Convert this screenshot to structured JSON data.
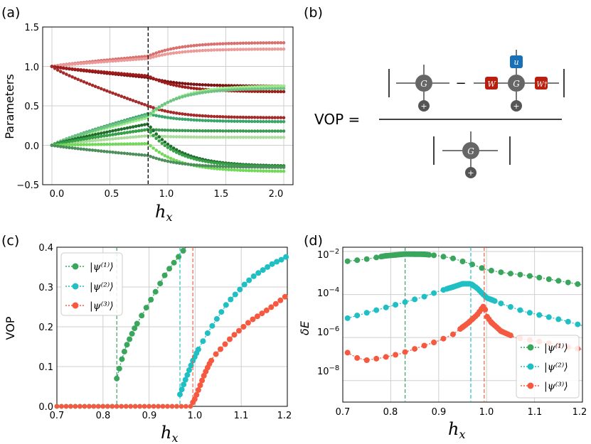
{
  "colors": {
    "psi1": "#3aa55c",
    "psi2": "#1fbfc4",
    "psi3": "#f55a41",
    "grid": "#cfcfcf",
    "node": "#666666",
    "wbox": "#b81f0f",
    "ubox": "#1a70b6"
  },
  "panel_a": {
    "label": "(a)",
    "ylabel": "Parameters",
    "xlabel_main": "h",
    "xlabel_sub": "x",
    "xticks": [
      "0.0",
      "0.5",
      "1.0",
      "1.5",
      "2.0"
    ],
    "yticks": [
      "−0.5",
      "0.0",
      "0.5",
      "1.0",
      "1.5"
    ],
    "critical_hx": 0.83
  },
  "panel_b": {
    "label": "(b)",
    "lhs": "VOP =",
    "minus": "−",
    "g_label": "G",
    "plus_label": "+",
    "w_label": "W",
    "wdag_label": "W†",
    "u_label": "u"
  },
  "panel_c": {
    "label": "(c)",
    "ylabel": "VOP",
    "xlabel_main": "h",
    "xlabel_sub": "x",
    "xticks": [
      "0.7",
      "0.8",
      "0.9",
      "1.0",
      "1.1",
      "1.2"
    ],
    "yticks": [
      "0.0",
      "0.1",
      "0.2",
      "0.3",
      "0.4"
    ],
    "legend": [
      "|ψ⁽¹⁾⟩",
      "|ψ⁽²⁾⟩",
      "|ψ⁽³⁾⟩"
    ]
  },
  "panel_d": {
    "label": "(d)",
    "ylabel": "δE",
    "xlabel_main": "h",
    "xlabel_sub": "x",
    "xticks": [
      "0.7",
      "0.8",
      "0.9",
      "1.0",
      "1.1",
      "1.2"
    ],
    "ytick_base": "10",
    "ytick_exps": [
      "−2",
      "−4",
      "−6",
      "−8"
    ],
    "legend": [
      "|ψ⁽¹⁾⟩",
      "|ψ⁽²⁾⟩",
      "|ψ⁽³⁾⟩"
    ]
  },
  "chart_data": [
    {
      "type": "scatter",
      "panel": "a",
      "title": "",
      "xlabel": "h_x",
      "ylabel": "Parameters",
      "xlim": [
        -0.08,
        2.08
      ],
      "ylim": [
        -0.5,
        1.5
      ],
      "grid": true,
      "vline_dashed": 0.83,
      "series": [
        {
          "name": "r1",
          "color": "#d9706e",
          "start": 1.0,
          "at_c": 1.13,
          "end": 1.3
        },
        {
          "name": "r2",
          "color": "#eb9a9a",
          "start": 1.0,
          "at_c": 1.1,
          "end": 1.22
        },
        {
          "name": "r3",
          "color": "#7a1414",
          "start": 1.0,
          "at_c": 0.86,
          "end": 0.75
        },
        {
          "name": "r4",
          "color": "#9e1c1c",
          "start": 1.0,
          "at_c": 0.88,
          "end": 0.68
        },
        {
          "name": "r5",
          "color": "#a52a2a",
          "start": 1.0,
          "at_c": 0.5,
          "end": 0.35
        },
        {
          "name": "g1",
          "color": "#3aa56b",
          "start": 0.0,
          "at_c": 0.4,
          "end": 0.3
        },
        {
          "name": "g2",
          "color": "#9ded8a",
          "start": 0.0,
          "at_c": 0.35,
          "end": 0.75
        },
        {
          "name": "g3",
          "color": "#6fc384",
          "start": 0.0,
          "at_c": 0.38,
          "end": 0.72
        },
        {
          "name": "g4",
          "color": "#3d9953",
          "start": 0.0,
          "at_c": 0.2,
          "end": 0.18
        },
        {
          "name": "g5",
          "color": "#acdc9c",
          "start": 0.0,
          "at_c": 0.12,
          "end": 0.1
        },
        {
          "name": "g6",
          "color": "#1e6e2c",
          "start": 0.0,
          "at_c": 0.27,
          "end": -0.26
        },
        {
          "name": "g7",
          "color": "#38a048",
          "start": 0.0,
          "at_c": 0.2,
          "end": -0.27
        },
        {
          "name": "g8",
          "color": "#72d858",
          "start": 0.0,
          "at_c": 0.02,
          "end": -0.33
        },
        {
          "name": "g9",
          "color": "#4d8f5c",
          "start": 0.0,
          "at_c": -0.13,
          "end": -0.28
        }
      ]
    },
    {
      "type": "line",
      "panel": "c",
      "xlabel": "h_x",
      "ylabel": "VOP",
      "xlim": [
        0.7,
        1.2
      ],
      "ylim": [
        0.0,
        0.4
      ],
      "grid": true,
      "legend_position": "top-left",
      "series": [
        {
          "name": "|ψ(1)⟩",
          "color": "#3aa55c",
          "critical": 0.83,
          "points": [
            [
              0.83,
              0.07
            ],
            [
              0.84,
              0.115
            ],
            [
              0.85,
              0.15
            ],
            [
              0.86,
              0.175
            ],
            [
              0.87,
              0.2
            ],
            [
              0.88,
              0.22
            ],
            [
              0.89,
              0.24
            ],
            [
              0.9,
              0.26
            ],
            [
              0.91,
              0.28
            ],
            [
              0.92,
              0.3
            ],
            [
              0.93,
              0.322
            ],
            [
              0.94,
              0.34
            ],
            [
              0.95,
              0.355
            ],
            [
              0.96,
              0.37
            ],
            [
              0.97,
              0.385
            ],
            [
              0.98,
              0.4
            ]
          ]
        },
        {
          "name": "|ψ(2)⟩",
          "color": "#1fbfc4",
          "critical": 0.967,
          "points": [
            [
              0.967,
              0.03
            ],
            [
              0.975,
              0.055
            ],
            [
              0.985,
              0.085
            ],
            [
              0.995,
              0.115
            ],
            [
              1.01,
              0.15
            ],
            [
              1.03,
              0.19
            ],
            [
              1.05,
              0.225
            ],
            [
              1.07,
              0.26
            ],
            [
              1.09,
              0.285
            ],
            [
              1.11,
              0.31
            ],
            [
              1.13,
              0.33
            ],
            [
              1.15,
              0.345
            ],
            [
              1.17,
              0.36
            ],
            [
              1.19,
              0.37
            ],
            [
              1.2,
              0.378
            ]
          ]
        },
        {
          "name": "|ψ(3)⟩",
          "color": "#f55a41",
          "critical": 0.995,
          "points": [
            [
              0.995,
              0.01
            ],
            [
              1.0,
              0.02
            ],
            [
              1.01,
              0.05
            ],
            [
              1.02,
              0.08
            ],
            [
              1.03,
              0.105
            ],
            [
              1.04,
              0.125
            ],
            [
              1.06,
              0.15
            ],
            [
              1.08,
              0.175
            ],
            [
              1.1,
              0.195
            ],
            [
              1.12,
              0.215
            ],
            [
              1.14,
              0.23
            ],
            [
              1.16,
              0.245
            ],
            [
              1.18,
              0.262
            ],
            [
              1.2,
              0.28
            ]
          ]
        }
      ]
    },
    {
      "type": "line",
      "panel": "d",
      "xlabel": "h_x",
      "ylabel": "δE",
      "xlim": [
        0.7,
        1.2
      ],
      "ylim_log10": [
        -9.0,
        -1.8
      ],
      "grid": true,
      "legend_position": "bottom-right",
      "series": [
        {
          "name": "|ψ(1)⟩",
          "color": "#3aa55c",
          "critical": 0.83,
          "points_log10": [
            [
              0.71,
              -2.45
            ],
            [
              0.75,
              -2.35
            ],
            [
              0.79,
              -2.2
            ],
            [
              0.83,
              -2.12
            ],
            [
              0.87,
              -2.13
            ],
            [
              0.9,
              -2.2
            ],
            [
              0.93,
              -2.32
            ],
            [
              0.97,
              -2.6
            ],
            [
              1.0,
              -2.85
            ],
            [
              1.04,
              -3.0
            ],
            [
              1.08,
              -3.1
            ],
            [
              1.12,
              -3.25
            ],
            [
              1.16,
              -3.4
            ],
            [
              1.2,
              -3.55
            ]
          ]
        },
        {
          "name": "|ψ(2)⟩",
          "color": "#1fbfc4",
          "critical": 0.967,
          "points_log10": [
            [
              0.71,
              -5.1
            ],
            [
              0.75,
              -4.85
            ],
            [
              0.79,
              -4.6
            ],
            [
              0.83,
              -4.35
            ],
            [
              0.87,
              -4.1
            ],
            [
              0.9,
              -3.85
            ],
            [
              0.93,
              -3.65
            ],
            [
              0.95,
              -3.5
            ],
            [
              0.967,
              -3.5
            ],
            [
              0.98,
              -3.7
            ],
            [
              1.0,
              -4.15
            ],
            [
              1.04,
              -4.5
            ],
            [
              1.08,
              -4.8
            ],
            [
              1.12,
              -5.0
            ],
            [
              1.16,
              -5.2
            ],
            [
              1.2,
              -5.45
            ]
          ]
        },
        {
          "name": "|ψ(3)⟩",
          "color": "#f55a41",
          "critical": 0.995,
          "points_log10": [
            [
              0.71,
              -6.7
            ],
            [
              0.73,
              -6.95
            ],
            [
              0.75,
              -7.05
            ],
            [
              0.78,
              -6.95
            ],
            [
              0.82,
              -6.75
            ],
            [
              0.86,
              -6.45
            ],
            [
              0.9,
              -6.15
            ],
            [
              0.93,
              -5.85
            ],
            [
              0.96,
              -5.35
            ],
            [
              0.98,
              -4.95
            ],
            [
              0.995,
              -4.5
            ],
            [
              1.0,
              -5.0
            ],
            [
              1.01,
              -5.3
            ],
            [
              1.03,
              -5.7
            ],
            [
              1.06,
              -6.0
            ],
            [
              1.1,
              -6.15
            ],
            [
              1.14,
              -6.3
            ],
            [
              1.17,
              -6.45
            ],
            [
              1.2,
              -6.55
            ]
          ]
        }
      ]
    }
  ]
}
